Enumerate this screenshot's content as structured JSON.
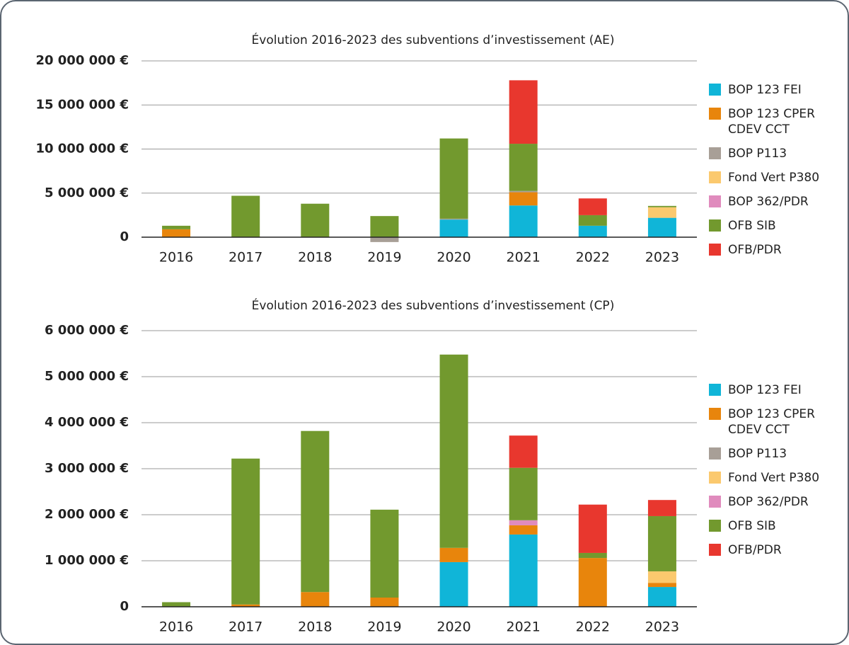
{
  "chart_data": [
    {
      "type": "bar",
      "stacked": true,
      "title": "Évolution 2016-2023 des subventions d’investissement (AE)",
      "categories": [
        "2016",
        "2017",
        "2018",
        "2019",
        "2020",
        "2021",
        "2022",
        "2023"
      ],
      "ylim": [
        -800000,
        20000000
      ],
      "yticks": [
        {
          "value": 0,
          "label": "0"
        },
        {
          "value": 5000000,
          "label": "5 000 000 €"
        },
        {
          "value": 10000000,
          "label": "10 000 000 €"
        },
        {
          "value": 15000000,
          "label": "15 000 000 €"
        },
        {
          "value": 20000000,
          "label": "20 000 000 €"
        }
      ],
      "grid": true,
      "legend": "right",
      "series": [
        {
          "name": "BOP 123 FEI",
          "color": "#10b5d8",
          "values": [
            0,
            0,
            0,
            0,
            2000000,
            3600000,
            1300000,
            2200000
          ]
        },
        {
          "name": "BOP 123 CPER CDEV CCT",
          "color": "#e8850c",
          "values": [
            900000,
            0,
            0,
            0,
            0,
            1500000,
            0,
            0
          ]
        },
        {
          "name": "BOP P113",
          "color": "#a89f97",
          "values": [
            0,
            0,
            0,
            -550000,
            100000,
            150000,
            0,
            0
          ]
        },
        {
          "name": "Fond Vert P380",
          "color": "#fbc96e",
          "values": [
            0,
            0,
            0,
            0,
            0,
            0,
            0,
            1200000
          ]
        },
        {
          "name": "BOP 362/PDR",
          "color": "#e08bbd",
          "values": [
            0,
            0,
            0,
            0,
            0,
            0,
            0,
            0
          ]
        },
        {
          "name": "OFB SIB",
          "color": "#72992e",
          "values": [
            400000,
            4700000,
            3800000,
            2400000,
            9100000,
            5350000,
            1200000,
            150000
          ]
        },
        {
          "name": "OFB/PDR",
          "color": "#e8372e",
          "values": [
            0,
            0,
            0,
            0,
            0,
            7200000,
            1900000,
            0
          ]
        }
      ]
    },
    {
      "type": "bar",
      "stacked": true,
      "title": "Évolution 2016-2023 des subventions d’investissement (CP)",
      "categories": [
        "2016",
        "2017",
        "2018",
        "2019",
        "2020",
        "2021",
        "2022",
        "2023"
      ],
      "ylim": [
        0,
        6000000
      ],
      "yticks": [
        {
          "value": 0,
          "label": "0"
        },
        {
          "value": 1000000,
          "label": "1 000 000 €"
        },
        {
          "value": 2000000,
          "label": "2 000 000 €"
        },
        {
          "value": 3000000,
          "label": "3 000 000 €"
        },
        {
          "value": 4000000,
          "label": "4 000 000 €"
        },
        {
          "value": 5000000,
          "label": "5 000 000 €"
        },
        {
          "value": 6000000,
          "label": "6 000 000 €"
        }
      ],
      "grid": true,
      "legend": "right",
      "series": [
        {
          "name": "BOP 123 FEI",
          "color": "#10b5d8",
          "values": [
            0,
            0,
            0,
            0,
            970000,
            1570000,
            0,
            430000
          ]
        },
        {
          "name": "BOP 123 CPER CDEV CCT",
          "color": "#e8850c",
          "values": [
            0,
            50000,
            320000,
            200000,
            310000,
            200000,
            1060000,
            90000
          ]
        },
        {
          "name": "BOP P113",
          "color": "#a89f97",
          "values": [
            0,
            0,
            0,
            0,
            0,
            0,
            0,
            0
          ]
        },
        {
          "name": "Fond Vert P380",
          "color": "#fbc96e",
          "values": [
            0,
            0,
            0,
            0,
            0,
            0,
            0,
            250000
          ]
        },
        {
          "name": "BOP 362/PDR",
          "color": "#e08bbd",
          "values": [
            0,
            0,
            0,
            0,
            0,
            110000,
            0,
            0
          ]
        },
        {
          "name": "OFB SIB",
          "color": "#72992e",
          "values": [
            100000,
            3170000,
            3500000,
            1910000,
            4200000,
            1140000,
            110000,
            1200000
          ]
        },
        {
          "name": "OFB/PDR",
          "color": "#e8372e",
          "values": [
            0,
            0,
            0,
            0,
            0,
            700000,
            1050000,
            350000
          ]
        }
      ]
    }
  ]
}
